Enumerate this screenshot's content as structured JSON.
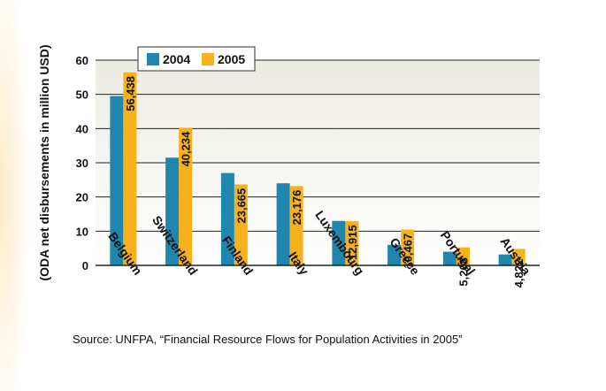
{
  "colors": {
    "series_2004": "#1f86ad",
    "series_2005": "#f7b21b",
    "plot_bg_top": "#f0eee4",
    "plot_bg_bottom": "#ffffff",
    "side_glow": "#f6c45c"
  },
  "source_text": "Source: UNFPA, “Financial Resource Flows for Population Activities in 2005”",
  "chart_data": {
    "type": "bar",
    "title": "",
    "xlabel": "",
    "ylabel": "(ODA net disbursements in million USD)",
    "ylim": [
      0,
      60
    ],
    "yticks": [
      "0",
      "10",
      "20",
      "30",
      "40",
      "50",
      "60"
    ],
    "grid": true,
    "legend_position": "top-left",
    "categories": [
      "Belgium",
      "Switzerland",
      "Finland",
      "Italy",
      "Luxembourg",
      "Greece",
      "Portugal",
      "Austria"
    ],
    "series": [
      {
        "name": "2004",
        "values": [
          49.5,
          31.5,
          27,
          24,
          13,
          6,
          4,
          3.2
        ]
      },
      {
        "name": "2005",
        "values": [
          56.438,
          40.234,
          23.665,
          23.176,
          12.915,
          10.467,
          5.268,
          4.822
        ]
      }
    ],
    "data_labels_2005": [
      "56,438",
      "40,234",
      "23,665",
      "23,176",
      "12,915",
      "10,467",
      "5,268",
      "4,822"
    ]
  }
}
